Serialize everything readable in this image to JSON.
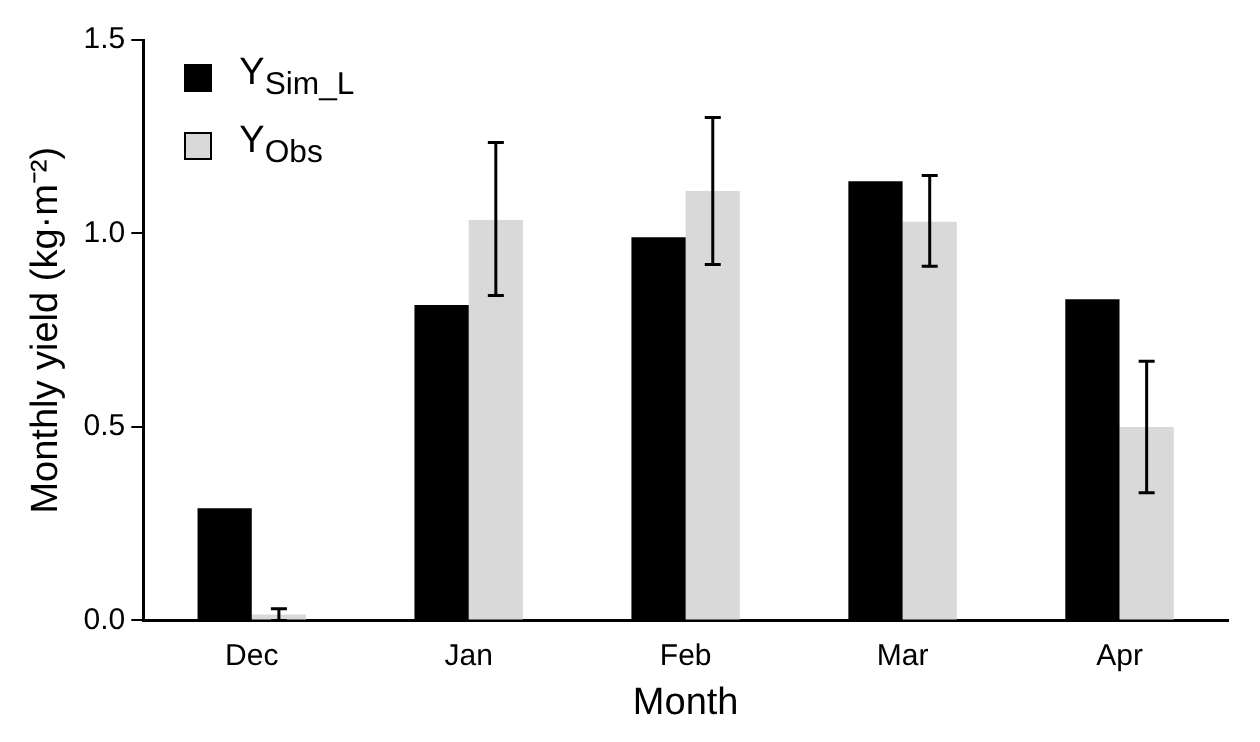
{
  "chart_data": {
    "type": "bar",
    "xlabel": "Month",
    "ylabel": "Monthly yield (kg·m⁻²)",
    "categories": [
      "Dec",
      "Jan",
      "Feb",
      "Mar",
      "Apr"
    ],
    "series": [
      {
        "name": "Y$_{Sim_L}$",
        "color": "#000000",
        "values": [
          0.29,
          0.815,
          0.99,
          1.135,
          0.83
        ]
      },
      {
        "name": "Y$_{Obs}$",
        "color": "#d9d9d9",
        "values": [
          0.015,
          1.035,
          1.11,
          1.03,
          0.5
        ],
        "errors": [
          [
            0,
            0.03
          ],
          [
            0.84,
            1.235
          ],
          [
            0.92,
            1.3
          ],
          [
            0.915,
            1.15
          ],
          [
            0.33,
            0.67
          ]
        ]
      }
    ],
    "ylim": [
      0,
      1.5
    ],
    "yticks": [
      {
        "value": 0,
        "label": "0.0"
      },
      {
        "value": 0.5,
        "label": "0.5"
      },
      {
        "value": 1,
        "label": "1.0"
      },
      {
        "value": 1.5,
        "label": "1.5"
      }
    ],
    "grid": false,
    "legend": "top left"
  }
}
